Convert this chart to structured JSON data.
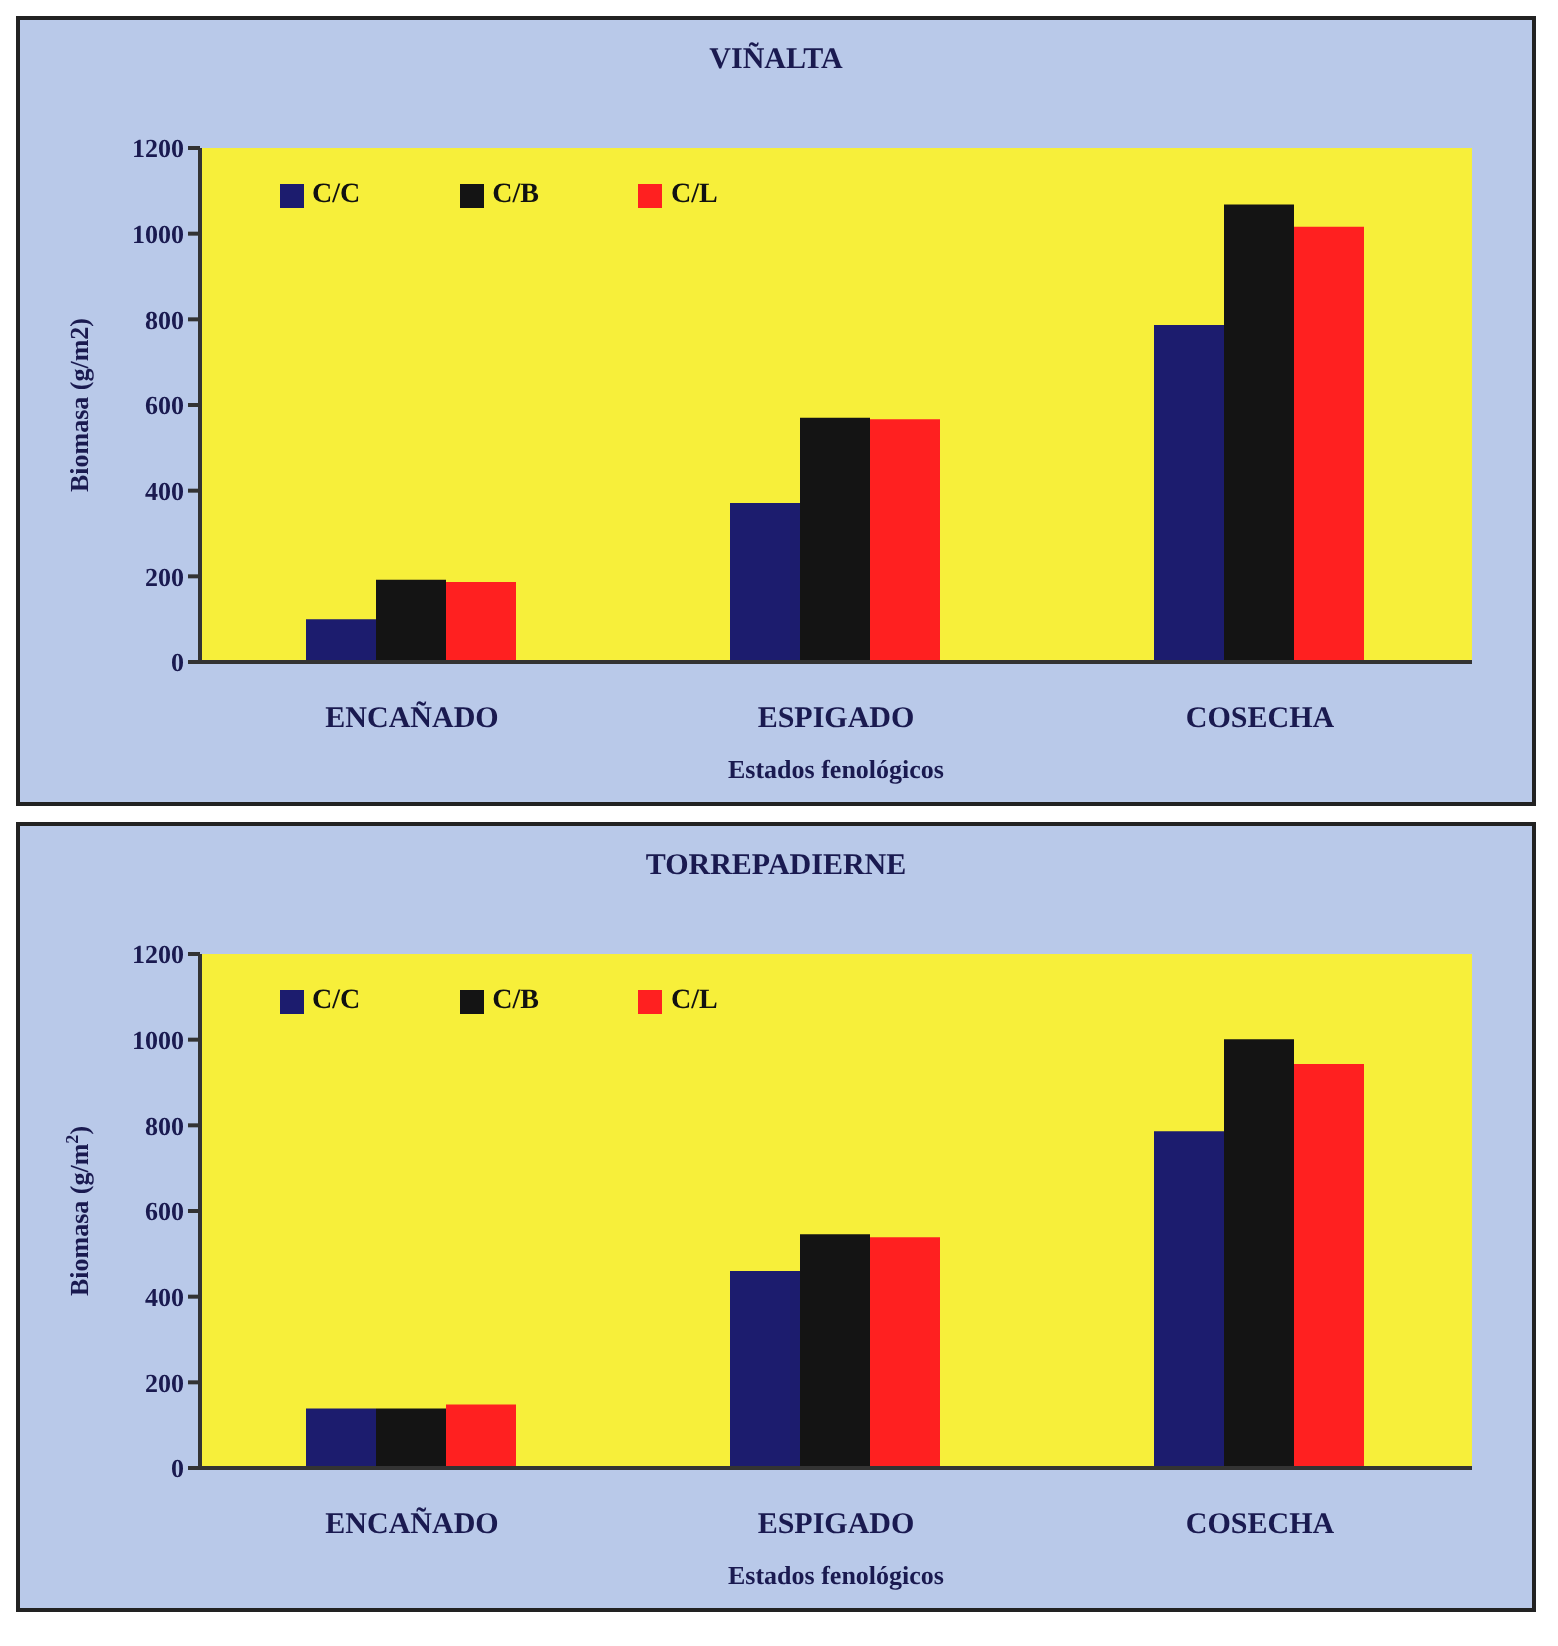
{
  "chart_data": [
    {
      "type": "bar",
      "title": "VIÑALTA",
      "xlabel": "Estados fenológicos",
      "ylabel": "Biomasa (g/m2)",
      "categories": [
        "ENCAÑADO",
        "ESPIGADO",
        "COSECHA"
      ],
      "series": [
        {
          "name": "C/C",
          "color": "#1c1c6e",
          "values": [
            100,
            371,
            787
          ]
        },
        {
          "name": "C/B",
          "color": "#141414",
          "values": [
            192,
            570,
            1068
          ]
        },
        {
          "name": "C/L",
          "color": "#ff2020",
          "values": [
            187,
            567,
            1016
          ]
        }
      ],
      "ylim": [
        0,
        1200
      ],
      "yticks": [
        0,
        200,
        400,
        600,
        800,
        1000,
        1200
      ],
      "grid": false,
      "legend": "top left"
    },
    {
      "type": "bar",
      "title": "TORREPADIERNE",
      "xlabel": "Estados fenológicos",
      "ylabel": "Biomasa (g/m$^{2}$)",
      "categories": [
        "ENCAÑADO",
        "ESPIGADO",
        "COSECHA"
      ],
      "series": [
        {
          "name": "C/C",
          "color": "#1c1c6e",
          "values": [
            139,
            460,
            786
          ]
        },
        {
          "name": "C/B",
          "color": "#141414",
          "values": [
            139,
            546,
            1001
          ]
        },
        {
          "name": "C/L",
          "color": "#ff2020",
          "values": [
            148,
            539,
            943
          ]
        }
      ],
      "ylim": [
        0,
        1200
      ],
      "yticks": [
        0,
        200,
        400,
        600,
        800,
        1000,
        1200
      ],
      "grid": false,
      "legend": "top left"
    }
  ]
}
